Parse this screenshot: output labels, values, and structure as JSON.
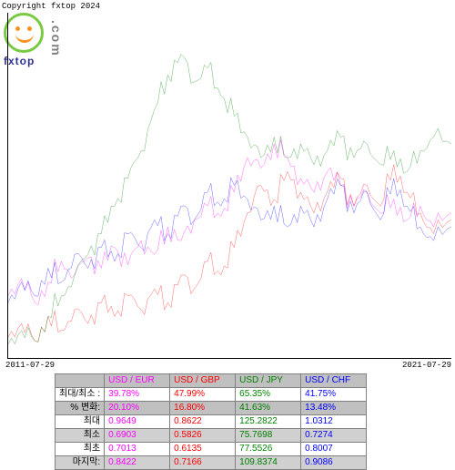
{
  "copyright": "Copyright fxtop 2024",
  "logo": {
    "brand": "fxtop",
    "suffix": ".com"
  },
  "chart": {
    "type": "line",
    "background_color": "#ffffff",
    "axis_color": "#000000",
    "x_start_label": "2011-07-29",
    "x_end_label": "2021-07-29",
    "y_range": [
      0,
      100
    ],
    "series": [
      {
        "name": "USD/EUR",
        "color": "#ff00ff",
        "stroke_width": 1,
        "points": [
          [
            0,
            18
          ],
          [
            3,
            23
          ],
          [
            6,
            16
          ],
          [
            9,
            22
          ],
          [
            12,
            28
          ],
          [
            15,
            24
          ],
          [
            18,
            29
          ],
          [
            21,
            26
          ],
          [
            24,
            32
          ],
          [
            27,
            27
          ],
          [
            30,
            34
          ],
          [
            33,
            30
          ],
          [
            36,
            38
          ],
          [
            39,
            34
          ],
          [
            42,
            40
          ],
          [
            45,
            44
          ],
          [
            48,
            41
          ],
          [
            51,
            48
          ],
          [
            54,
            58
          ],
          [
            57,
            55
          ],
          [
            60,
            62
          ],
          [
            63,
            58
          ],
          [
            66,
            52
          ],
          [
            69,
            48
          ],
          [
            72,
            54
          ],
          [
            75,
            50
          ],
          [
            78,
            44
          ],
          [
            81,
            48
          ],
          [
            84,
            42
          ],
          [
            87,
            46
          ],
          [
            90,
            40
          ],
          [
            93,
            44
          ],
          [
            96,
            38
          ],
          [
            100,
            42
          ]
        ]
      },
      {
        "name": "USD/GBP",
        "color": "#ff0000",
        "stroke_width": 1,
        "points": [
          [
            0,
            6
          ],
          [
            3,
            10
          ],
          [
            6,
            5
          ],
          [
            9,
            12
          ],
          [
            12,
            8
          ],
          [
            15,
            14
          ],
          [
            18,
            10
          ],
          [
            21,
            16
          ],
          [
            24,
            12
          ],
          [
            27,
            18
          ],
          [
            30,
            14
          ],
          [
            33,
            20
          ],
          [
            36,
            16
          ],
          [
            39,
            24
          ],
          [
            42,
            20
          ],
          [
            45,
            28
          ],
          [
            48,
            24
          ],
          [
            51,
            32
          ],
          [
            54,
            42
          ],
          [
            57,
            50
          ],
          [
            60,
            46
          ],
          [
            63,
            54
          ],
          [
            66,
            48
          ],
          [
            69,
            42
          ],
          [
            72,
            48
          ],
          [
            75,
            52
          ],
          [
            78,
            44
          ],
          [
            81,
            50
          ],
          [
            84,
            44
          ],
          [
            87,
            56
          ],
          [
            90,
            48
          ],
          [
            93,
            42
          ],
          [
            96,
            36
          ],
          [
            100,
            40
          ]
        ]
      },
      {
        "name": "USD/JPY",
        "color": "#008000",
        "stroke_width": 1,
        "points": [
          [
            0,
            4
          ],
          [
            3,
            8
          ],
          [
            6,
            5
          ],
          [
            9,
            12
          ],
          [
            12,
            18
          ],
          [
            15,
            24
          ],
          [
            18,
            30
          ],
          [
            21,
            36
          ],
          [
            24,
            44
          ],
          [
            27,
            52
          ],
          [
            30,
            60
          ],
          [
            33,
            72
          ],
          [
            36,
            82
          ],
          [
            39,
            88
          ],
          [
            42,
            80
          ],
          [
            45,
            84
          ],
          [
            48,
            76
          ],
          [
            51,
            70
          ],
          [
            54,
            64
          ],
          [
            57,
            58
          ],
          [
            60,
            64
          ],
          [
            63,
            58
          ],
          [
            66,
            62
          ],
          [
            69,
            56
          ],
          [
            72,
            60
          ],
          [
            75,
            64
          ],
          [
            78,
            58
          ],
          [
            81,
            62
          ],
          [
            84,
            56
          ],
          [
            87,
            60
          ],
          [
            90,
            54
          ],
          [
            93,
            60
          ],
          [
            96,
            64
          ],
          [
            100,
            62
          ]
        ]
      },
      {
        "name": "USD/CHF",
        "color": "#0000ff",
        "stroke_width": 1,
        "points": [
          [
            0,
            16
          ],
          [
            3,
            22
          ],
          [
            6,
            18
          ],
          [
            9,
            26
          ],
          [
            12,
            22
          ],
          [
            15,
            30
          ],
          [
            18,
            26
          ],
          [
            21,
            32
          ],
          [
            24,
            28
          ],
          [
            27,
            36
          ],
          [
            30,
            32
          ],
          [
            33,
            40
          ],
          [
            36,
            36
          ],
          [
            39,
            44
          ],
          [
            42,
            40
          ],
          [
            45,
            48
          ],
          [
            48,
            44
          ],
          [
            51,
            50
          ],
          [
            54,
            46
          ],
          [
            57,
            40
          ],
          [
            60,
            44
          ],
          [
            63,
            38
          ],
          [
            66,
            44
          ],
          [
            69,
            38
          ],
          [
            72,
            46
          ],
          [
            75,
            50
          ],
          [
            78,
            42
          ],
          [
            81,
            48
          ],
          [
            84,
            40
          ],
          [
            87,
            52
          ],
          [
            90,
            44
          ],
          [
            93,
            38
          ],
          [
            96,
            34
          ],
          [
            100,
            38
          ]
        ]
      }
    ]
  },
  "table": {
    "header_bg": "#c0c0c0",
    "alt_row_bg": "#d0d0d0",
    "row_labels": [
      "최대/최소 :",
      "% 변화:",
      "최대",
      "최소",
      "최초",
      "마지막:"
    ],
    "columns": [
      {
        "header": "USD / EUR",
        "color": "#ff00ff",
        "cells": [
          "39.78%",
          "20.10%",
          "0.9649",
          "0.6903",
          "0.7013",
          "0.8422"
        ]
      },
      {
        "header": "USD / GBP",
        "color": "#ff0000",
        "cells": [
          "47.99%",
          "16.80%",
          "0.8622",
          "0.5826",
          "0.6135",
          "0.7166"
        ]
      },
      {
        "header": "USD / JPY",
        "color": "#008000",
        "cells": [
          "65.35%",
          "41.63%",
          "125.2822",
          "75.7698",
          "77.5526",
          "109.8374"
        ]
      },
      {
        "header": "USD / CHF",
        "color": "#0000ff",
        "cells": [
          "41.75%",
          "13.48%",
          "1.0312",
          "0.7274",
          "0.8007",
          "0.9086"
        ]
      }
    ]
  }
}
